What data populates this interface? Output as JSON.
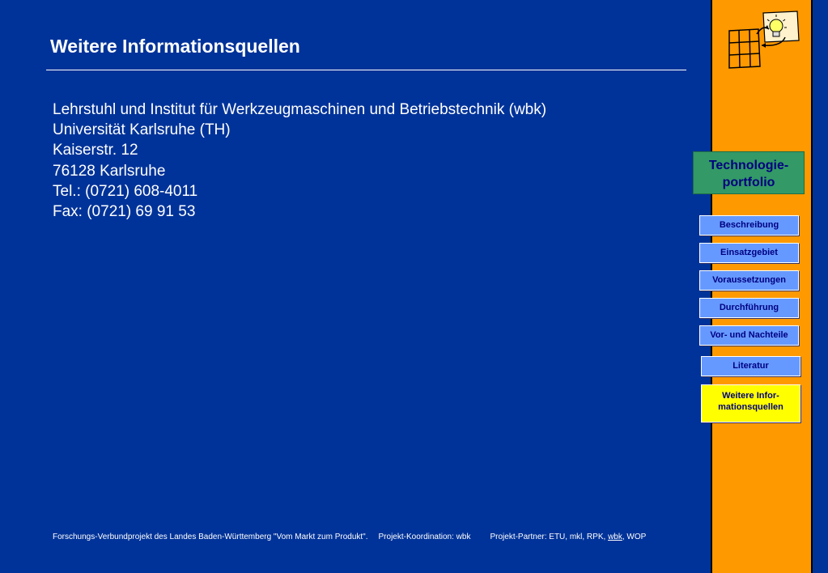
{
  "page": {
    "title": "Weitere Informationsquellen"
  },
  "contact": {
    "lines": [
      "Lehrstuhl und Institut für Werkzeugmaschinen und Betriebstechnik (wbk)",
      "Universität Karlsruhe (TH)",
      "Kaiserstr. 12",
      "76128 Karlsruhe",
      "Tel.: (0721) 608-4011",
      "Fax: (0721) 69 91 53"
    ]
  },
  "sidebar": {
    "logo_icon": "grid-lightbulb-icon",
    "portfolio_line1": "Technologie-",
    "portfolio_line2": "portfolio",
    "nav": [
      {
        "label": "Beschreibung"
      },
      {
        "label": "Einsatzgebiet"
      },
      {
        "label": "Voraussetzungen"
      },
      {
        "label": "Durchführung"
      },
      {
        "label": "Vor- und Nachteile"
      },
      {
        "label": "Literatur"
      },
      {
        "label_line1": "Weitere Infor-",
        "label_line2": "mationsquellen"
      }
    ]
  },
  "footer": {
    "project": "Forschungs-Verbundprojekt des Landes Baden-Württemberg \"Vom Markt zum Produkt\".",
    "coordination": "Projekt-Koordination: wbk",
    "partners_prefix": "Projekt-Partner: ETU, mkl, RPK, ",
    "partners_link": "wbk",
    "partners_suffix": ", WOP"
  },
  "colors": {
    "background": "#003399",
    "sidebar": "#ff9900",
    "portfolio": "#339966",
    "nav_button": "#6699ff",
    "nav_active": "#ffff00"
  }
}
